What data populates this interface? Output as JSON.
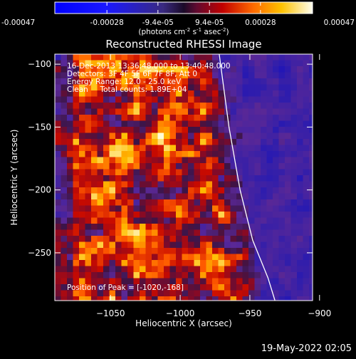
{
  "chart_data": {
    "type": "heatmap",
    "title": "Reconstructed RHESSI Image",
    "xlabel": "Heliocentric X (arcsec)",
    "ylabel": "Heliocentric Y (arcsec)",
    "xlim": [
      -1090,
      -905
    ],
    "ylim": [
      -288,
      -92
    ],
    "x_ticks": [
      -1050,
      -1000,
      -950,
      -900
    ],
    "y_ticks": [
      -100,
      -150,
      -200,
      -250
    ],
    "colorbar": {
      "ticks": [
        "-0.00047",
        "-0.00028",
        "-9.4e-05",
        "9.4e-05",
        "0.00028",
        "0.00047"
      ],
      "values": [
        -0.00047,
        -0.00028,
        -9.4e-05,
        9.4e-05,
        0.00028,
        0.00047
      ],
      "range": [
        -0.00047,
        0.00047
      ],
      "unit_html": "(photons cm<sup>-2</sup> s<sup>-1</sup> asec<sup>-2</sup>)"
    },
    "annotations": {
      "time": "16-Dec-2013 13:36:48.000 to 13:40:48.000",
      "detectors": "Detectors: 3F 4F 5F 6F 7F 8F, Att 0",
      "energy": "Energy Range: 12.0 - 25.0 keV",
      "clean": "Clean     Total counts: 1.89E+04",
      "peak": "Position of Peak = [-1020,-168]"
    },
    "limb": [
      [
        -972,
        -92
      ],
      [
        -965,
        -150
      ],
      [
        -957,
        -200
      ],
      [
        -948,
        -240
      ],
      [
        -937,
        -270
      ],
      [
        -932,
        -288
      ]
    ],
    "colors": {
      "background": "#000000",
      "frame": "#ffffff",
      "limb": "#ffffff"
    }
  },
  "footer": {
    "timestamp": "19-May-2022 02:05"
  }
}
